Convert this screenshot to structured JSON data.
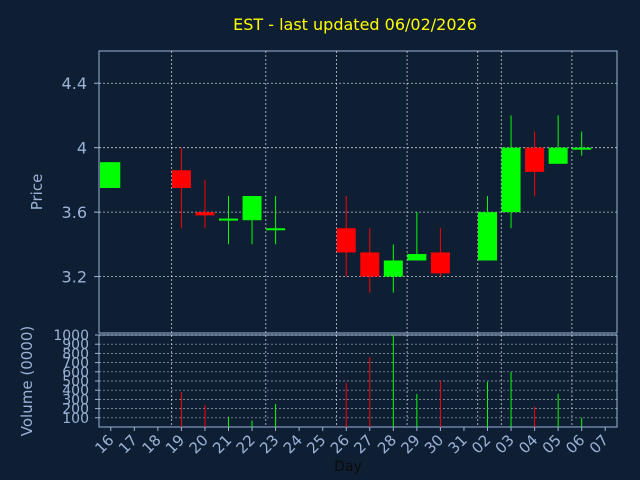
{
  "chart_data": [
    {
      "type": "candlestick",
      "title": "EST - last updated 06/02/2026",
      "ylabel": "Price",
      "ylim": [
        2.85,
        4.6
      ],
      "yticks": [
        3.2,
        3.6,
        4,
        4.4
      ],
      "ytick_labels": [
        "3.2",
        "3.6",
        "4",
        "4.4"
      ],
      "grid": true,
      "categories": [
        "16",
        "17",
        "18",
        "19",
        "20",
        "21",
        "22",
        "23",
        "24",
        "25",
        "26",
        "27",
        "28",
        "29",
        "30",
        "31",
        "02",
        "03",
        "04",
        "05",
        "06",
        "07"
      ],
      "candles": [
        {
          "day": "16",
          "open": 3.75,
          "close": 3.91,
          "high": 3.91,
          "low": 3.75
        },
        {
          "day": "19",
          "open": 3.86,
          "close": 3.75,
          "high": 4.0,
          "low": 3.5
        },
        {
          "day": "20",
          "open": 3.6,
          "close": 3.58,
          "high": 3.8,
          "low": 3.5
        },
        {
          "day": "21",
          "open": 3.55,
          "close": 3.56,
          "high": 3.7,
          "low": 3.4
        },
        {
          "day": "22",
          "open": 3.55,
          "close": 3.7,
          "high": 3.7,
          "low": 3.4
        },
        {
          "day": "23",
          "open": 3.49,
          "close": 3.5,
          "high": 3.7,
          "low": 3.4
        },
        {
          "day": "26",
          "open": 3.5,
          "close": 3.35,
          "high": 3.7,
          "low": 3.2
        },
        {
          "day": "27",
          "open": 3.35,
          "close": 3.2,
          "high": 3.5,
          "low": 3.1
        },
        {
          "day": "28",
          "open": 3.2,
          "close": 3.3,
          "high": 3.4,
          "low": 3.1
        },
        {
          "day": "29",
          "open": 3.3,
          "close": 3.34,
          "high": 3.6,
          "low": 3.3
        },
        {
          "day": "30",
          "open": 3.35,
          "close": 3.22,
          "high": 3.5,
          "low": 3.2
        },
        {
          "day": "02",
          "open": 3.3,
          "close": 3.6,
          "high": 3.7,
          "low": 3.3
        },
        {
          "day": "03",
          "open": 3.6,
          "close": 4.0,
          "high": 4.2,
          "low": 3.5
        },
        {
          "day": "04",
          "open": 4.0,
          "close": 3.85,
          "high": 4.1,
          "low": 3.7
        },
        {
          "day": "05",
          "open": 3.9,
          "close": 4.0,
          "high": 4.2,
          "low": 3.9
        },
        {
          "day": "06",
          "open": 3.99,
          "close": 4.0,
          "high": 4.1,
          "low": 3.95
        }
      ],
      "colors": {
        "up": "#00ff00",
        "down": "#ff0000",
        "title": "#ffff00",
        "axis": "#99b3d9",
        "grid": "#ffffff"
      }
    },
    {
      "type": "bar",
      "ylabel": "Volume (0000)",
      "xlabel": "Day",
      "ylim": [
        0,
        1000
      ],
      "yticks": [
        100,
        200,
        300,
        400,
        500,
        600,
        700,
        800,
        900,
        1000
      ],
      "ytick_labels": [
        "100",
        "200",
        "300",
        "400",
        "500",
        "600",
        "700",
        "800",
        "900",
        "1000"
      ],
      "categories": [
        "16",
        "17",
        "18",
        "19",
        "20",
        "21",
        "22",
        "23",
        "24",
        "25",
        "26",
        "27",
        "28",
        "29",
        "30",
        "31",
        "02",
        "03",
        "04",
        "05",
        "06",
        "07"
      ],
      "volumes": [
        {
          "day": "16",
          "value": 0,
          "direction": "up"
        },
        {
          "day": "19",
          "value": 380,
          "direction": "down"
        },
        {
          "day": "20",
          "value": 240,
          "direction": "down"
        },
        {
          "day": "21",
          "value": 110,
          "direction": "up"
        },
        {
          "day": "22",
          "value": 70,
          "direction": "up"
        },
        {
          "day": "23",
          "value": 250,
          "direction": "up"
        },
        {
          "day": "26",
          "value": 480,
          "direction": "down"
        },
        {
          "day": "27",
          "value": 760,
          "direction": "down"
        },
        {
          "day": "28",
          "value": 1000,
          "direction": "up"
        },
        {
          "day": "29",
          "value": 360,
          "direction": "up"
        },
        {
          "day": "30",
          "value": 500,
          "direction": "down"
        },
        {
          "day": "02",
          "value": 490,
          "direction": "up"
        },
        {
          "day": "03",
          "value": 600,
          "direction": "up"
        },
        {
          "day": "04",
          "value": 220,
          "direction": "down"
        },
        {
          "day": "05",
          "value": 360,
          "direction": "up"
        },
        {
          "day": "06",
          "value": 100,
          "direction": "up"
        }
      ]
    }
  ]
}
